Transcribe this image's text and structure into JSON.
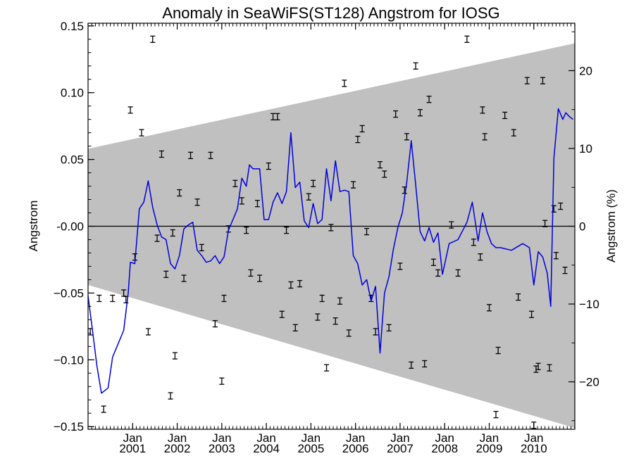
{
  "chart_data": {
    "type": "line",
    "title": "Anomaly in SeaWiFS(ST128) Angstrom for IOSG",
    "xlabel": "",
    "ylabel": "Angstrom",
    "y2label": "Angstrom (%)",
    "xlim": [
      2000.0,
      2010.92
    ],
    "ylim": [
      -0.152,
      0.152
    ],
    "y2lim": [
      -26.1,
      26.1
    ],
    "x_ticks": [
      {
        "value": 2001.0,
        "month": "Jan",
        "year": "2001"
      },
      {
        "value": 2002.0,
        "month": "Jan",
        "year": "2002"
      },
      {
        "value": 2003.0,
        "month": "Jan",
        "year": "2003"
      },
      {
        "value": 2004.0,
        "month": "Jan",
        "year": "2004"
      },
      {
        "value": 2005.0,
        "month": "Jan",
        "year": "2005"
      },
      {
        "value": 2006.0,
        "month": "Jan",
        "year": "2006"
      },
      {
        "value": 2007.0,
        "month": "Jan",
        "year": "2007"
      },
      {
        "value": 2008.0,
        "month": "Jan",
        "year": "2008"
      },
      {
        "value": 2009.0,
        "month": "Jan",
        "year": "2009"
      },
      {
        "value": 2010.0,
        "month": "Jan",
        "year": "2010"
      }
    ],
    "y_ticks": [
      {
        "value": 0.15,
        "label": "0.15"
      },
      {
        "value": 0.1,
        "label": "0.10"
      },
      {
        "value": 0.05,
        "label": "0.05"
      },
      {
        "value": 0.0,
        "label": "-0.00"
      },
      {
        "value": -0.05,
        "label": "−0.05"
      },
      {
        "value": -0.1,
        "label": "−0.10"
      },
      {
        "value": -0.15,
        "label": "−0.15"
      }
    ],
    "y2_ticks": [
      {
        "value": 20,
        "label": "20"
      },
      {
        "value": 10,
        "label": "10"
      },
      {
        "value": 0,
        "label": "0"
      },
      {
        "value": -10,
        "label": "−10"
      },
      {
        "value": -20,
        "label": "−20"
      }
    ],
    "zero_line": 0.0,
    "band": {
      "upper": [
        [
          2000.0,
          0.058
        ],
        [
          2010.92,
          0.137
        ]
      ],
      "lower": [
        [
          2000.0,
          -0.044
        ],
        [
          2010.92,
          -0.151
        ]
      ],
      "color": "#c0c0c0"
    },
    "series": [
      {
        "style": "line",
        "color": "#0000dd",
        "x": [
          2000.0,
          2000.1,
          2000.2,
          2000.3,
          2000.45,
          2000.55,
          2000.65,
          2000.8,
          2000.9,
          2000.95,
          2001.05,
          2001.15,
          2001.25,
          2001.35,
          2001.45,
          2001.55,
          2001.65,
          2001.75,
          2001.85,
          2001.95,
          2002.05,
          2002.15,
          2002.25,
          2002.35,
          2002.45,
          2002.55,
          2002.65,
          2002.75,
          2002.85,
          2002.95,
          2003.05,
          2003.15,
          2003.25,
          2003.35,
          2003.45,
          2003.55,
          2003.62,
          2003.7,
          2003.85,
          2003.95,
          2004.05,
          2004.15,
          2004.25,
          2004.35,
          2004.45,
          2004.55,
          2004.65,
          2004.75,
          2004.85,
          2004.95,
          2005.05,
          2005.15,
          2005.25,
          2005.35,
          2005.45,
          2005.55,
          2005.65,
          2005.75,
          2005.85,
          2005.95,
          2006.05,
          2006.15,
          2006.25,
          2006.35,
          2006.45,
          2006.55,
          2006.65,
          2006.75,
          2006.85,
          2006.95,
          2007.05,
          2007.15,
          2007.25,
          2007.35,
          2007.45,
          2007.55,
          2007.65,
          2007.75,
          2007.85,
          2007.95,
          2008.1,
          2008.3,
          2008.5,
          2008.62,
          2008.75,
          2008.85,
          2008.95,
          2009.05,
          2009.15,
          2009.25,
          2009.5,
          2009.75,
          2009.9,
          2010.0,
          2010.1,
          2010.2,
          2010.3,
          2010.38,
          2010.45,
          2010.55,
          2010.65,
          2010.72,
          2010.8,
          2010.88
        ],
        "y": [
          -0.052,
          -0.078,
          -0.105,
          -0.125,
          -0.121,
          -0.098,
          -0.09,
          -0.078,
          -0.05,
          -0.027,
          -0.028,
          0.013,
          0.018,
          0.034,
          0.014,
          0.001,
          -0.008,
          -0.01,
          -0.028,
          -0.032,
          -0.022,
          -0.002,
          0.001,
          0.003,
          -0.018,
          -0.022,
          -0.027,
          -0.026,
          -0.022,
          -0.028,
          -0.023,
          -0.003,
          0.005,
          0.013,
          0.036,
          0.03,
          0.046,
          0.043,
          0.043,
          0.005,
          0.005,
          0.018,
          0.025,
          0.017,
          0.026,
          0.07,
          0.029,
          0.033,
          0.004,
          -0.001,
          0.017,
          0.002,
          0.005,
          0.043,
          0.019,
          0.049,
          0.026,
          0.027,
          0.026,
          -0.022,
          -0.028,
          -0.044,
          -0.04,
          -0.056,
          -0.045,
          -0.095,
          -0.05,
          -0.038,
          -0.017,
          -0.001,
          0.01,
          0.033,
          0.064,
          0.031,
          -0.004,
          -0.011,
          -0.001,
          -0.012,
          -0.005,
          -0.036,
          -0.013,
          -0.01,
          0.003,
          0.018,
          -0.011,
          0.01,
          -0.004,
          -0.013,
          -0.016,
          -0.016,
          -0.018,
          -0.013,
          -0.016,
          -0.044,
          -0.019,
          -0.023,
          -0.035,
          -0.06,
          0.051,
          0.088,
          0.08,
          0.085,
          0.082,
          0.08
        ]
      },
      {
        "style": "error-bar-points",
        "color": "#000000",
        "x": [
          2000.05,
          2000.25,
          2000.35,
          2000.55,
          2000.8,
          2000.85,
          2000.95,
          2001.05,
          2001.2,
          2001.35,
          2001.45,
          2001.55,
          2001.65,
          2001.75,
          2001.85,
          2001.9,
          2001.95,
          2002.05,
          2002.15,
          2002.3,
          2002.45,
          2002.55,
          2002.75,
          2002.85,
          2003.0,
          2003.05,
          2003.15,
          2003.3,
          2003.45,
          2003.55,
          2003.65,
          2003.8,
          2003.85,
          2004.05,
          2004.15,
          2004.25,
          2004.35,
          2004.45,
          2004.55,
          2004.65,
          2004.75,
          2004.95,
          2005.05,
          2005.15,
          2005.25,
          2005.35,
          2005.45,
          2005.55,
          2005.65,
          2005.75,
          2005.85,
          2005.95,
          2006.05,
          2006.15,
          2006.25,
          2006.35,
          2006.45,
          2006.55,
          2006.65,
          2006.75,
          2006.9,
          2007.0,
          2007.1,
          2007.15,
          2007.25,
          2007.35,
          2007.45,
          2007.55,
          2007.65,
          2007.75,
          2007.85,
          2008.15,
          2008.3,
          2008.5,
          2008.65,
          2008.8,
          2008.85,
          2008.9,
          2009.0,
          2009.15,
          2009.2,
          2009.35,
          2009.55,
          2009.65,
          2009.85,
          2009.95,
          2010.0,
          2010.05,
          2010.1,
          2010.2,
          2010.25,
          2010.35,
          2010.45,
          2010.5,
          2010.6,
          2010.7
        ],
        "y": [
          -0.079,
          -0.054,
          -0.137,
          -0.054,
          -0.05,
          -0.055,
          0.087,
          -0.023,
          0.07,
          -0.079,
          0.14,
          -0.009,
          0.054,
          -0.036,
          -0.127,
          -0.005,
          -0.097,
          0.025,
          -0.039,
          0.053,
          0.018,
          -0.016,
          0.053,
          -0.073,
          -0.116,
          -0.054,
          -0.002,
          0.032,
          0.019,
          -0.003,
          -0.035,
          0.017,
          -0.039,
          0.045,
          0.082,
          0.082,
          -0.066,
          -0.003,
          -0.044,
          -0.076,
          -0.043,
          0.022,
          0.032,
          -0.068,
          -0.054,
          -0.106,
          -0.001,
          -0.071,
          -0.056,
          0.107,
          -0.08,
          0.031,
          0.065,
          0.073,
          -0.004,
          -0.054,
          -0.079,
          0.046,
          0.039,
          -0.076,
          0.084,
          -0.03,
          0.027,
          0.067,
          -0.104,
          0.12,
          0.085,
          -0.103,
          0.095,
          -0.027,
          -0.035,
          0.001,
          -0.035,
          0.14,
          -0.012,
          -0.023,
          0.087,
          0.067,
          -0.061,
          -0.141,
          -0.093,
          0.083,
          0.07,
          -0.053,
          0.109,
          -0.066,
          -0.149,
          -0.107,
          -0.105,
          0.109,
          0.002,
          -0.106,
          0.013,
          -0.022,
          0.015,
          -0.033
        ]
      }
    ]
  }
}
